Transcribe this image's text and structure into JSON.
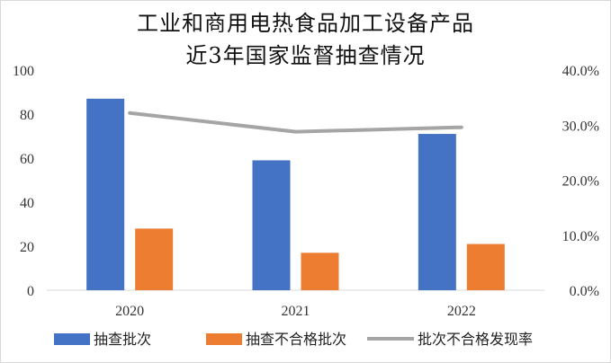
{
  "chart_data": {
    "type": "bar",
    "title_lines": [
      "工业和商用电热食品加工设备产品",
      "近3年国家监督抽查情况"
    ],
    "categories": [
      "2020",
      "2021",
      "2022"
    ],
    "series": [
      {
        "name": "抽查批次",
        "kind": "bar",
        "axis": "left",
        "color": "#4472c4",
        "values": [
          87,
          59,
          71
        ]
      },
      {
        "name": "抽查不合格批次",
        "kind": "bar",
        "axis": "left",
        "color": "#ed7d31",
        "values": [
          28,
          17,
          21
        ]
      },
      {
        "name": "批次不合格发现率",
        "kind": "line",
        "axis": "right",
        "color": "#a5a5a5",
        "values": [
          32.2,
          28.8,
          29.6
        ]
      }
    ],
    "left_axis": {
      "ylim": [
        0,
        100
      ],
      "ticks": [
        "0",
        "20",
        "40",
        "60",
        "80",
        "100"
      ]
    },
    "right_axis": {
      "ylim": [
        0,
        40
      ],
      "ticks": [
        "0.0%",
        "10.0%",
        "20.0%",
        "30.0%",
        "40.0%"
      ]
    },
    "grid": false,
    "legend_position": "bottom"
  }
}
